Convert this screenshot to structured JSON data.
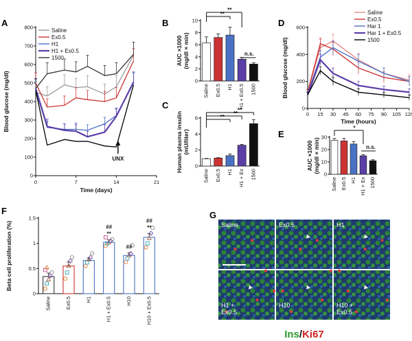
{
  "panels": {
    "A": "A",
    "B": "B",
    "C": "C",
    "D": "D",
    "E": "E",
    "F": "F",
    "G": "G"
  },
  "chart_data": [
    {
      "id": "A",
      "type": "line",
      "xlabel": "Time (days)",
      "ylabel": "Blood glucose (mg/dl)",
      "xlim": [
        0,
        21
      ],
      "ylim": [
        0,
        800
      ],
      "xticks": [
        0,
        7,
        14,
        21
      ],
      "yticks": [
        0,
        100,
        200,
        300,
        400,
        500,
        600,
        700,
        800
      ],
      "x": [
        0,
        2,
        5,
        7,
        9,
        12,
        14,
        17
      ],
      "legend_position": "top-left",
      "annotation": "UNX",
      "series": [
        {
          "name": "Saline",
          "color": "#999999",
          "values": [
            450,
            430,
            490,
            475,
            480,
            440,
            480,
            650
          ],
          "err": [
            60,
            50,
            55,
            50,
            60,
            55,
            60,
            70
          ]
        },
        {
          "name": "Ex0.5",
          "color": "#cc3333",
          "values": [
            500,
            370,
            380,
            420,
            410,
            400,
            420,
            620
          ],
          "err": [
            55,
            45,
            50,
            55,
            50,
            55,
            55,
            65
          ]
        },
        {
          "name": "H1",
          "color": "#4a72c4",
          "values": [
            460,
            260,
            250,
            250,
            245,
            280,
            325,
            500
          ],
          "err": [
            50,
            35,
            30,
            35,
            30,
            35,
            40,
            55
          ]
        },
        {
          "name": "H1 + Ex0.5",
          "color": "#5b3ea8",
          "values": [
            470,
            265,
            245,
            240,
            210,
            235,
            320,
            505
          ],
          "err": [
            50,
            40,
            35,
            35,
            30,
            40,
            40,
            55
          ]
        },
        {
          "name": "1500",
          "color": "#333333",
          "values": [
            470,
            550,
            570,
            560,
            590,
            540,
            550,
            655
          ],
          "err": [
            55,
            60,
            60,
            55,
            60,
            55,
            60,
            65
          ]
        }
      ],
      "lower_curve": {
        "color": "#000000",
        "values": [
          460,
          165,
          195,
          185,
          185,
          160,
          155,
          490
        ]
      }
    },
    {
      "id": "B",
      "type": "bar",
      "ylabel": "AUC ×1000\n(mg/dl × min)",
      "ylim": [
        0,
        10
      ],
      "yticks": [
        0,
        2,
        4,
        6,
        8,
        10
      ],
      "categories": [
        "Saline",
        "Ex0.5",
        "H1",
        "H1 + Ex0.5",
        "1500"
      ],
      "values": [
        6.3,
        7.2,
        7.6,
        3.6,
        2.8
      ],
      "err": [
        1.0,
        0.6,
        1.3,
        0.3,
        0.2
      ],
      "colors": [
        "#ffffff",
        "#cc3333",
        "#4a72c4",
        "#5b3ea8",
        "#111111"
      ],
      "annotations": [
        "**",
        "**",
        "n.s."
      ]
    },
    {
      "id": "C",
      "type": "bar",
      "ylabel": "Human plasma insulin\n(mU/liter)",
      "ylim": [
        0,
        6
      ],
      "yticks": [
        0,
        2,
        4,
        6
      ],
      "categories": [
        "Saline",
        "Ex0.5",
        "H1",
        "H1 + Ex",
        "1500"
      ],
      "values": [
        0.9,
        1.0,
        1.3,
        2.6,
        5.3
      ],
      "err": [
        0.05,
        0.05,
        0.2,
        0.1,
        0.5
      ],
      "colors": [
        "#ffffff",
        "#cc3333",
        "#4a72c4",
        "#5b3ea8",
        "#111111"
      ],
      "annotations": [
        "**",
        "**",
        "**"
      ]
    },
    {
      "id": "D",
      "type": "line",
      "xlabel": "Time (hours)",
      "ylabel": "Blood glucose (mg/dl)",
      "xlim": [
        0,
        120
      ],
      "ylim": [
        0,
        600
      ],
      "xticks": [
        0,
        15,
        30,
        45,
        60,
        75,
        90,
        105,
        120
      ],
      "yticks": [
        0,
        200,
        400,
        600
      ],
      "x": [
        0,
        15,
        30,
        60,
        90,
        120
      ],
      "legend_position": "top-right",
      "series": [
        {
          "name": "Saline",
          "color": "#e88888",
          "values": [
            120,
            450,
            500,
            360,
            260,
            210
          ],
          "err": [
            20,
            60,
            50,
            50,
            40,
            40
          ]
        },
        {
          "name": "Ex0.5",
          "color": "#cc3333",
          "values": [
            120,
            480,
            440,
            300,
            230,
            200
          ],
          "err": [
            20,
            40,
            50,
            45,
            40,
            35
          ]
        },
        {
          "name": "Har 1",
          "color": "#4a72c4",
          "values": [
            110,
            380,
            450,
            350,
            260,
            200
          ],
          "err": [
            20,
            50,
            50,
            50,
            40,
            35
          ]
        },
        {
          "name": "Har 1 + Ex0.5",
          "color": "#5b3ea8",
          "values": [
            100,
            360,
            260,
            170,
            140,
            120
          ],
          "err": [
            20,
            40,
            40,
            30,
            25,
            25
          ]
        },
        {
          "name": "1500",
          "color": "#000000",
          "values": [
            100,
            280,
            200,
            120,
            100,
            80
          ],
          "err": [
            20,
            30,
            30,
            25,
            20,
            20
          ]
        }
      ]
    },
    {
      "id": "E",
      "type": "bar",
      "ylabel": "AUC ×1000\n(mg/dl × min)",
      "ylim": [
        0,
        30
      ],
      "yticks": [
        0,
        10,
        20,
        30
      ],
      "categories": [
        "Saline",
        "Ex0.5",
        "H1",
        "H1 + Ex",
        "1500"
      ],
      "values": [
        27.5,
        27,
        24.5,
        15,
        11
      ],
      "err": [
        1.5,
        2.0,
        2.0,
        1.0,
        0.8
      ],
      "colors": [
        "#ffffff",
        "#cc3333",
        "#4a72c4",
        "#5b3ea8",
        "#111111"
      ],
      "annotations": [
        "*",
        "n.s."
      ]
    },
    {
      "id": "F",
      "type": "bar",
      "ylabel": "Beta cell proliferation (%)",
      "ylim": [
        0,
        1.5
      ],
      "yticks": [
        0,
        0.5,
        1.0,
        1.5
      ],
      "categories": [
        "Saline",
        "Ex0.5",
        "H1",
        "H1 + Ex0.5",
        "H10",
        "H10 + Ex0.5"
      ],
      "values": [
        0.34,
        0.55,
        0.66,
        1.02,
        0.76,
        1.12
      ],
      "err": [
        0.07,
        0.08,
        0.05,
        0.05,
        0.05,
        0.07
      ],
      "colors": [
        "#333333",
        "#cc3333",
        "#4a72c4",
        "#4a72c4",
        "#4a72c4",
        "#4a72c4"
      ],
      "point_colors": [
        "#e07a2f",
        "#2ca4b8",
        "#9a5a3a",
        "#7b4fa5",
        "#888888",
        "#c44a8c"
      ],
      "points": [
        [
          0.1,
          0.2,
          0.28,
          0.35,
          0.42,
          0.47,
          0.52
        ],
        [
          0.3,
          0.42,
          0.55,
          0.65,
          0.72
        ],
        [
          0.55,
          0.62,
          0.68,
          0.72,
          0.8
        ],
        [
          0.95,
          1.0,
          1.02,
          1.05,
          1.08,
          1.12
        ],
        [
          0.63,
          0.7,
          0.76,
          0.8,
          0.96
        ],
        [
          0.92,
          1.0,
          1.1,
          1.2,
          1.31
        ]
      ],
      "annotations": [
        {
          "category": "H1 + Ex0.5",
          "lines": [
            "##",
            "**"
          ]
        },
        {
          "category": "H10",
          "lines": [
            "##"
          ]
        },
        {
          "category": "H10 + Ex0.5",
          "lines": [
            "##",
            "**"
          ]
        }
      ]
    }
  ],
  "micrographs": {
    "tiles": [
      {
        "label": "Saline"
      },
      {
        "label": "Ex0.5"
      },
      {
        "label": "H1"
      },
      {
        "label": "H1 +\nEx0.5"
      },
      {
        "label": "H10"
      },
      {
        "label": "H10 +\nEx0.5"
      }
    ],
    "legend": [
      {
        "text": "Ins",
        "color": "#2e9a2e"
      },
      {
        "text": "/",
        "color": "#111111"
      },
      {
        "text": "Ki67",
        "color": "#cc2222"
      }
    ]
  }
}
